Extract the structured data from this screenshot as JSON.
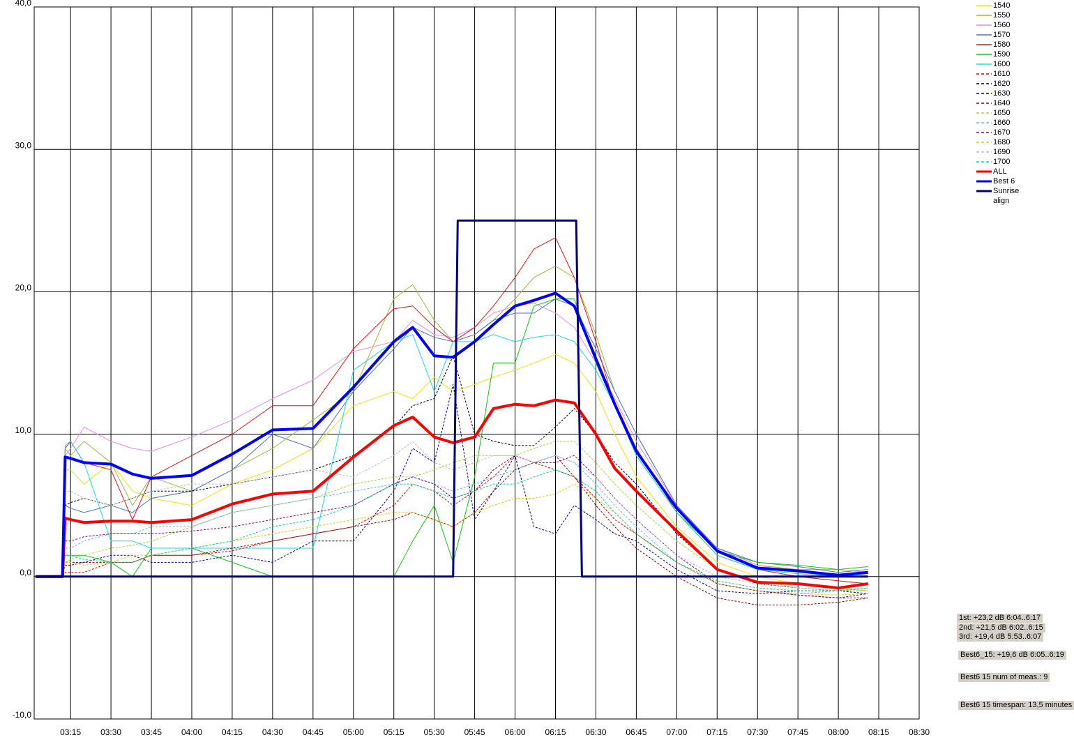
{
  "chart_data": {
    "type": "line",
    "x": [
      182,
      192,
      193,
      195,
      200,
      210,
      218,
      225,
      240,
      255,
      270,
      285,
      300,
      315,
      322,
      330,
      337,
      345,
      352,
      360,
      367,
      375,
      382,
      390,
      397,
      405,
      420,
      435,
      450,
      465,
      480,
      491
    ],
    "xlim": [
      181.5,
      510
    ],
    "xticks": [
      {
        "value": 195,
        "label": "03:15"
      },
      {
        "value": 210,
        "label": "03:30"
      },
      {
        "value": 225,
        "label": "03:45"
      },
      {
        "value": 240,
        "label": "04:00"
      },
      {
        "value": 255,
        "label": "04:15"
      },
      {
        "value": 270,
        "label": "04:30"
      },
      {
        "value": 285,
        "label": "04:45"
      },
      {
        "value": 300,
        "label": "05:00"
      },
      {
        "value": 315,
        "label": "05:15"
      },
      {
        "value": 330,
        "label": "05:30"
      },
      {
        "value": 345,
        "label": "05:45"
      },
      {
        "value": 360,
        "label": "06:00"
      },
      {
        "value": 375,
        "label": "06:15"
      },
      {
        "value": 390,
        "label": "06:30"
      },
      {
        "value": 405,
        "label": "06:45"
      },
      {
        "value": 420,
        "label": "07:00"
      },
      {
        "value": 435,
        "label": "07:15"
      },
      {
        "value": 450,
        "label": "07:30"
      },
      {
        "value": 465,
        "label": "07:45"
      },
      {
        "value": 480,
        "label": "08:00"
      },
      {
        "value": 495,
        "label": "08:15"
      },
      {
        "value": 510,
        "label": "08:30"
      }
    ],
    "ylim": [
      -10,
      40
    ],
    "yticks": [
      {
        "value": -10,
        "label": "-10,0"
      },
      {
        "value": 0,
        "label": "0,0"
      },
      {
        "value": 10,
        "label": "10,0"
      },
      {
        "value": 20,
        "label": "20,0"
      },
      {
        "value": 30,
        "label": "30,0"
      },
      {
        "value": 40,
        "label": "40,0"
      }
    ],
    "grid": true,
    "legend": "top-right",
    "series": [
      {
        "name": "1540",
        "color": "#f0e600",
        "values": [
          0,
          0,
          7.5,
          7.5,
          6.5,
          8.0,
          6.0,
          5.5,
          5.0,
          6.5,
          7.5,
          9.0,
          12.0,
          13.0,
          12.5,
          14.0,
          13.0,
          13.5,
          14.0,
          14.5,
          15.0,
          15.6,
          15.0,
          13.0,
          10.0,
          7.0,
          3.5,
          1.0,
          0.0,
          -0.5,
          -0.8,
          -1.0
        ]
      },
      {
        "name": "1550",
        "color": "#9bbb3c",
        "values": [
          0,
          0,
          9.0,
          8.5,
          9.5,
          8.0,
          5.0,
          7.0,
          6.0,
          7.5,
          9.0,
          11.0,
          13.0,
          19.5,
          20.5,
          18.0,
          16.5,
          17.0,
          18.0,
          19.5,
          21.0,
          21.8,
          21.0,
          17.0,
          13.0,
          10.0,
          5.0,
          2.0,
          0.8,
          0.5,
          0.5,
          0.3
        ]
      },
      {
        "name": "1560",
        "color": "#e88ae8",
        "values": [
          0,
          0,
          8.5,
          9.0,
          10.5,
          9.5,
          9.0,
          8.8,
          9.8,
          11.0,
          12.5,
          13.8,
          15.8,
          16.5,
          18.0,
          17.0,
          16.8,
          17.5,
          18.5,
          19.0,
          19.2,
          18.5,
          17.5,
          15.0,
          12.5,
          9.5,
          5.0,
          2.0,
          0.8,
          0.3,
          0.0,
          0.2
        ]
      },
      {
        "name": "1570",
        "color": "#4a74c8",
        "values": [
          0,
          0,
          5.0,
          4.8,
          4.5,
          5.0,
          4.5,
          5.5,
          6.0,
          7.5,
          10.0,
          9.0,
          13.0,
          16.0,
          17.5,
          16.8,
          16.5,
          17.0,
          18.0,
          18.5,
          18.5,
          19.5,
          19.0,
          16.0,
          13.0,
          10.0,
          5.0,
          2.0,
          1.0,
          0.7,
          0.3,
          0.5
        ]
      },
      {
        "name": "1580",
        "color": "#e81010",
        "values": [
          0,
          0,
          9.0,
          9.5,
          8.0,
          7.5,
          4.0,
          7.0,
          8.5,
          10.0,
          12.0,
          12.0,
          16.0,
          18.8,
          19.0,
          17.5,
          16.5,
          17.5,
          19.0,
          21.0,
          23.0,
          23.8,
          21.0,
          16.5,
          12.0,
          9.0,
          4.5,
          1.5,
          0.5,
          0.0,
          -0.3,
          -0.5
        ]
      },
      {
        "name": "1590",
        "color": "#10c810",
        "values": [
          0,
          0,
          1.5,
          1.5,
          1.5,
          1.0,
          0.0,
          2.0,
          2.0,
          1.0,
          0.0,
          0.0,
          0.0,
          0.0,
          2.5,
          5.0,
          1.0,
          7.0,
          15.0,
          15.0,
          19.0,
          19.5,
          19.5,
          15.0,
          12.0,
          8.5,
          4.5,
          1.8,
          1.0,
          0.8,
          0.5,
          0.7
        ]
      },
      {
        "name": "1600",
        "color": "#10e0e8",
        "values": [
          0,
          0,
          9.2,
          9.5,
          8.0,
          2.5,
          2.5,
          2.0,
          2.0,
          2.0,
          2.0,
          2.0,
          14.5,
          16.5,
          17.0,
          13.0,
          16.5,
          16.5,
          17.0,
          16.5,
          16.8,
          17.0,
          16.5,
          14.5,
          12.0,
          8.5,
          4.5,
          1.5,
          0.5,
          0.2,
          0.0,
          0.2
        ]
      },
      {
        "name": "1610",
        "color": "#e00000",
        "dashed": true,
        "values": [
          0,
          0,
          0.3,
          0.3,
          0.3,
          1.0,
          1.0,
          1.5,
          1.5,
          1.8,
          2.5,
          3.0,
          3.5,
          5.0,
          6.5,
          6.0,
          5.0,
          6.0,
          7.0,
          8.5,
          8.0,
          7.5,
          7.0,
          5.5,
          4.0,
          3.0,
          1.0,
          -0.5,
          -1.0,
          -1.3,
          -1.5,
          -1.5
        ]
      },
      {
        "name": "1620",
        "color": "#000000",
        "dashed": true,
        "values": [
          0,
          0,
          5.0,
          5.2,
          5.5,
          5.0,
          5.5,
          6.0,
          6.0,
          6.5,
          7.0,
          7.5,
          8.5,
          10.5,
          12.0,
          12.5,
          15.5,
          10.0,
          9.5,
          9.2,
          9.2,
          10.5,
          11.8,
          10.0,
          8.0,
          6.5,
          3.0,
          0.5,
          -0.5,
          -0.8,
          -1.0,
          -0.8
        ]
      },
      {
        "name": "1630",
        "color": "#0000a0",
        "dashed": true,
        "values": [
          0,
          0,
          1.0,
          1.0,
          1.0,
          1.5,
          1.5,
          1.0,
          1.0,
          1.5,
          1.0,
          2.5,
          2.5,
          6.0,
          9.0,
          8.0,
          13.5,
          4.0,
          6.0,
          8.5,
          3.5,
          3.0,
          5.0,
          4.0,
          3.0,
          2.5,
          0.5,
          -1.0,
          -1.2,
          -1.0,
          -1.0,
          -1.2
        ]
      },
      {
        "name": "1640",
        "color": "#990000",
        "dashed": true,
        "values": [
          0,
          0,
          0.8,
          0.8,
          1.0,
          1.0,
          1.0,
          1.5,
          1.5,
          2.0,
          2.5,
          3.0,
          3.5,
          4.0,
          4.5,
          4.0,
          3.5,
          4.5,
          6.0,
          7.5,
          8.0,
          8.5,
          7.0,
          5.0,
          3.5,
          2.0,
          0.0,
          -1.5,
          -2.0,
          -2.0,
          -1.8,
          -1.5
        ]
      },
      {
        "name": "1650",
        "color": "#99dd33",
        "dashed": true,
        "values": [
          0,
          0,
          1.0,
          1.2,
          1.5,
          2.0,
          2.2,
          2.5,
          3.5,
          4.5,
          5.0,
          5.5,
          6.5,
          7.0,
          7.0,
          7.5,
          8.0,
          8.5,
          8.5,
          8.5,
          9.0,
          9.5,
          9.5,
          8.0,
          6.5,
          5.0,
          2.5,
          0.5,
          -0.3,
          -0.8,
          -1.0,
          -1.0
        ]
      },
      {
        "name": "1660",
        "color": "#66b3ff",
        "dashed": true,
        "values": [
          0,
          0,
          2.0,
          2.0,
          2.5,
          3.0,
          3.0,
          3.5,
          3.5,
          4.5,
          5.0,
          5.5,
          6.0,
          6.5,
          7.0,
          6.5,
          6.0,
          6.5,
          7.0,
          7.5,
          8.0,
          8.5,
          8.0,
          6.5,
          5.0,
          3.5,
          1.0,
          -0.5,
          -1.0,
          -1.2,
          -1.0,
          -1.0
        ]
      },
      {
        "name": "1670",
        "color": "#800080",
        "dashed": true,
        "values": [
          0,
          0,
          2.5,
          2.5,
          2.8,
          3.0,
          3.0,
          3.0,
          3.2,
          3.5,
          4.0,
          4.5,
          5.0,
          6.5,
          7.0,
          6.5,
          5.5,
          6.0,
          7.5,
          8.5,
          8.0,
          8.0,
          8.5,
          7.0,
          5.5,
          4.0,
          1.5,
          -0.5,
          -1.0,
          -1.3,
          -1.5,
          -1.2
        ]
      },
      {
        "name": "1680",
        "color": "#e6c800",
        "dashed": true,
        "values": [
          0,
          0,
          1.0,
          1.0,
          0.8,
          1.0,
          1.5,
          1.5,
          2.0,
          2.5,
          3.0,
          3.5,
          4.0,
          4.5,
          4.5,
          4.0,
          3.5,
          4.5,
          5.0,
          5.5,
          5.5,
          5.8,
          6.5,
          5.5,
          4.5,
          3.0,
          1.0,
          -0.5,
          -1.0,
          -1.2,
          -1.3,
          -1.2
        ]
      },
      {
        "name": "1690",
        "color": "#bbbbbb",
        "dashed": true,
        "values": [
          0,
          0,
          6.0,
          6.0,
          5.5,
          5.0,
          5.5,
          6.0,
          6.5,
          6.5,
          7.0,
          7.5,
          7.0,
          8.5,
          9.5,
          8.0,
          7.5,
          8.0,
          8.5,
          8.5,
          8.0,
          8.5,
          8.0,
          7.0,
          5.5,
          4.0,
          1.5,
          0.0,
          -0.5,
          -0.8,
          -1.0,
          -0.8
        ]
      },
      {
        "name": "1700",
        "color": "#00dd99",
        "dashed": true,
        "values": [
          0,
          0,
          1.5,
          1.5,
          1.2,
          1.0,
          1.0,
          1.5,
          2.0,
          2.5,
          3.5,
          4.0,
          5.0,
          6.5,
          6.5,
          6.0,
          5.5,
          6.0,
          6.5,
          6.5,
          7.0,
          7.5,
          7.0,
          6.0,
          4.5,
          3.0,
          1.0,
          -0.3,
          -0.8,
          -1.0,
          -1.0,
          -0.8
        ]
      },
      {
        "name": "ALL",
        "color": "#ff0000",
        "width": 4,
        "values": [
          0,
          0,
          4.1,
          4.0,
          3.8,
          3.9,
          3.9,
          3.8,
          4.0,
          5.1,
          5.8,
          6.0,
          8.4,
          10.6,
          11.2,
          9.8,
          9.4,
          9.8,
          11.8,
          12.1,
          12.0,
          12.4,
          12.2,
          10.0,
          7.6,
          6.0,
          3.2,
          0.5,
          -0.4,
          -0.5,
          -0.8,
          -0.5
        ]
      },
      {
        "name": "Best 6",
        "color": "#0000ff",
        "width": 4,
        "values": [
          0,
          0,
          8.4,
          8.3,
          8.0,
          7.9,
          7.2,
          6.9,
          7.1,
          8.6,
          10.3,
          10.4,
          13.3,
          16.5,
          17.5,
          15.5,
          15.4,
          16.5,
          17.7,
          19.0,
          19.4,
          19.9,
          19.0,
          15.3,
          12.1,
          8.8,
          4.8,
          1.8,
          0.6,
          0.4,
          0.1,
          0.3
        ]
      },
      {
        "name": "Sunrise align",
        "color": "#000080",
        "width": 3,
        "x": [
          182,
          192,
          337,
          338.7,
          382.7,
          384.8,
          491
        ],
        "values": [
          0,
          0,
          0,
          25,
          25,
          0,
          0
        ]
      }
    ],
    "annotations": [
      "1st: +23,2 dB 6:04..6:17",
      "2nd: +21,5 dB 6:02..6:15",
      "3rd: +19,4 dB 5:53..6:07",
      "Best6_15: +19,6 dB 6:05..6:19",
      "Best6 15 num of meas.: 9",
      "Best6 15 timespan: 13,5 minutes"
    ]
  }
}
